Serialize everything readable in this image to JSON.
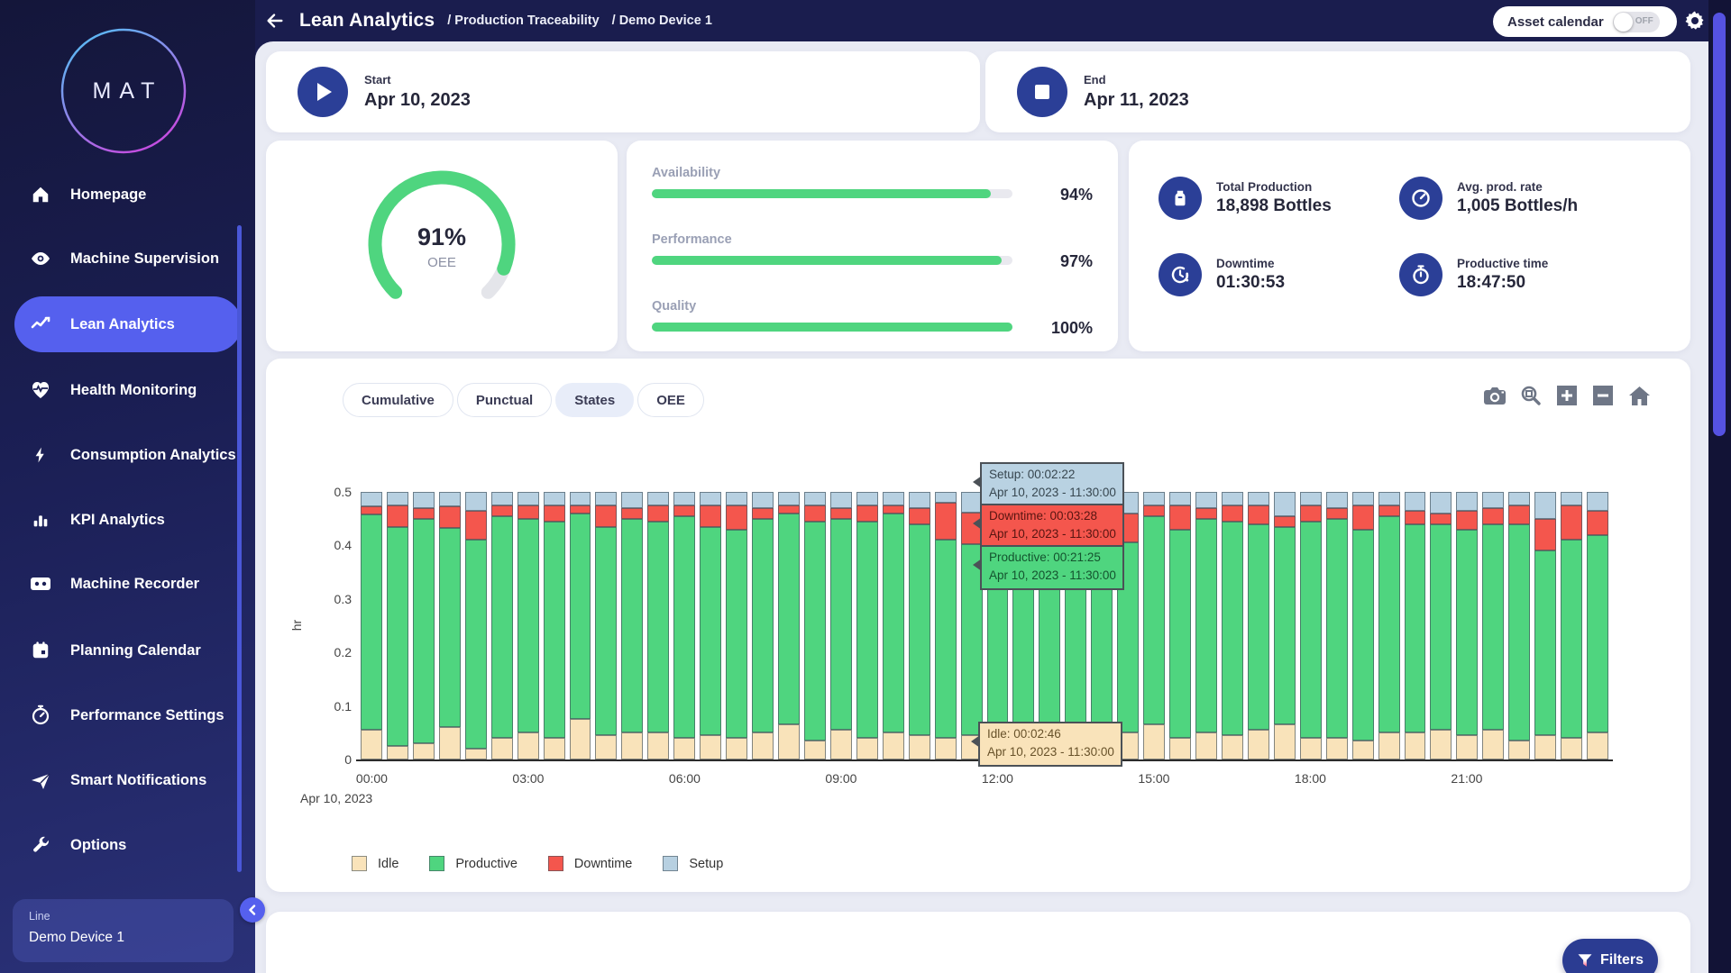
{
  "header": {
    "title": "Lean Analytics",
    "breadcrumb1": "/ Production Traceability",
    "breadcrumb2": "/ Demo Device 1",
    "asset_calendar_label": "Asset calendar",
    "asset_calendar_state": "OFF"
  },
  "sidebar": {
    "logo": "MAT",
    "items": [
      {
        "label": "Homepage",
        "icon": "home"
      },
      {
        "label": "Machine Supervision",
        "icon": "eye"
      },
      {
        "label": "Lean Analytics",
        "icon": "trend"
      },
      {
        "label": "Health Monitoring",
        "icon": "heart-pulse"
      },
      {
        "label": "Consumption Analytics",
        "icon": "bolt"
      },
      {
        "label": "KPI Analytics",
        "icon": "bar-chart"
      },
      {
        "label": "Machine Recorder",
        "icon": "cassette"
      },
      {
        "label": "Planning Calendar",
        "icon": "calendar"
      },
      {
        "label": "Performance Settings",
        "icon": "stopwatch-gauge"
      },
      {
        "label": "Smart Notifications",
        "icon": "send"
      },
      {
        "label": "Options",
        "icon": "wrench"
      }
    ],
    "line_label": "Line",
    "line_value": "Demo Device 1"
  },
  "period": {
    "start_label": "Start",
    "start_date": "Apr 10, 2023",
    "end_label": "End",
    "end_date": "Apr 11, 2023"
  },
  "oee": {
    "value": "91%",
    "label": "OEE",
    "percent": 91
  },
  "metrics": [
    {
      "label": "Availability",
      "value": 94,
      "display": "94%"
    },
    {
      "label": "Performance",
      "value": 97,
      "display": "97%"
    },
    {
      "label": "Quality",
      "value": 100,
      "display": "100%"
    }
  ],
  "stats": [
    {
      "label": "Total Production",
      "value": "18,898 Bottles",
      "icon": "bottle"
    },
    {
      "label": "Avg. prod. rate",
      "value": "1,005 Bottles/h",
      "icon": "gauge"
    },
    {
      "label": "Downtime",
      "value": "01:30:53",
      "icon": "clock-alert"
    },
    {
      "label": "Productive time",
      "value": "18:47:50",
      "icon": "stopwatch"
    }
  ],
  "chart_tabs": [
    {
      "label": "Cumulative",
      "active": false
    },
    {
      "label": "Punctual",
      "active": false
    },
    {
      "label": "States",
      "active": true
    },
    {
      "label": "OEE",
      "active": false
    }
  ],
  "chart_data": {
    "type": "bar",
    "stacked": true,
    "bar_interval_minutes": 30,
    "ylabel": "hr",
    "ylim": [
      0,
      0.5
    ],
    "yticks": [
      0,
      0.1,
      0.2,
      0.3,
      0.4,
      0.5
    ],
    "xticks": [
      {
        "label": "00:00",
        "index": 0
      },
      {
        "label": "03:00",
        "index": 6
      },
      {
        "label": "06:00",
        "index": 12
      },
      {
        "label": "09:00",
        "index": 18
      },
      {
        "label": "12:00",
        "index": 24
      },
      {
        "label": "15:00",
        "index": 30
      },
      {
        "label": "18:00",
        "index": 36
      },
      {
        "label": "21:00",
        "index": 42
      }
    ],
    "x_date_label": "Apr 10, 2023",
    "legend_position": "bottom",
    "series": [
      {
        "name": "Idle",
        "color": "#f9e3ba",
        "values": [
          0.055,
          0.025,
          0.03,
          0.06,
          0.02,
          0.04,
          0.05,
          0.04,
          0.075,
          0.045,
          0.05,
          0.05,
          0.04,
          0.045,
          0.04,
          0.05,
          0.065,
          0.035,
          0.055,
          0.04,
          0.05,
          0.045,
          0.04,
          0.046,
          0.05,
          0.045,
          0.04,
          0.045,
          0.05,
          0.05,
          0.065,
          0.04,
          0.05,
          0.045,
          0.055,
          0.065,
          0.04,
          0.04,
          0.035,
          0.05,
          0.05,
          0.055,
          0.045,
          0.055,
          0.035,
          0.045,
          0.04,
          0.05
        ]
      },
      {
        "name": "Productive",
        "color": "#4fd57f",
        "values": [
          0.403,
          0.41,
          0.42,
          0.373,
          0.39,
          0.415,
          0.4,
          0.405,
          0.385,
          0.39,
          0.4,
          0.395,
          0.415,
          0.39,
          0.39,
          0.4,
          0.395,
          0.41,
          0.395,
          0.405,
          0.41,
          0.395,
          0.37,
          0.357,
          0.405,
          0.405,
          0.41,
          0.4,
          0.405,
          0.355,
          0.39,
          0.39,
          0.4,
          0.4,
          0.385,
          0.37,
          0.405,
          0.41,
          0.395,
          0.405,
          0.39,
          0.385,
          0.385,
          0.385,
          0.405,
          0.345,
          0.37,
          0.37
        ]
      },
      {
        "name": "Downtime",
        "color": "#f4564d",
        "values": [
          0.015,
          0.04,
          0.02,
          0.04,
          0.055,
          0.02,
          0.025,
          0.03,
          0.015,
          0.04,
          0.02,
          0.03,
          0.02,
          0.04,
          0.045,
          0.02,
          0.015,
          0.03,
          0.02,
          0.03,
          0.015,
          0.03,
          0.07,
          0.058,
          0.02,
          0.025,
          0.02,
          0.03,
          0.02,
          0.055,
          0.02,
          0.045,
          0.02,
          0.03,
          0.035,
          0.02,
          0.03,
          0.02,
          0.045,
          0.02,
          0.025,
          0.02,
          0.035,
          0.03,
          0.035,
          0.06,
          0.065,
          0.045
        ]
      },
      {
        "name": "Setup",
        "color": "#b7d0e1",
        "values": [
          0.027,
          0.025,
          0.03,
          0.027,
          0.035,
          0.025,
          0.025,
          0.025,
          0.025,
          0.025,
          0.03,
          0.025,
          0.025,
          0.025,
          0.025,
          0.03,
          0.025,
          0.025,
          0.03,
          0.025,
          0.025,
          0.03,
          0.02,
          0.039,
          0.025,
          0.025,
          0.03,
          0.025,
          0.025,
          0.04,
          0.025,
          0.025,
          0.03,
          0.025,
          0.025,
          0.045,
          0.025,
          0.03,
          0.025,
          0.025,
          0.035,
          0.04,
          0.035,
          0.03,
          0.025,
          0.05,
          0.025,
          0.035
        ]
      }
    ]
  },
  "tooltips": [
    {
      "type": "Setup",
      "line1": "Setup: 00:02:22",
      "line2": "Apr 10, 2023 - 11:30:00"
    },
    {
      "type": "Downtime",
      "line1": "Downtime: 00:03:28",
      "line2": "Apr 10, 2023 - 11:30:00"
    },
    {
      "type": "Productive",
      "line1": "Productive: 00:21:25",
      "line2": "Apr 10, 2023 - 11:30:00"
    },
    {
      "type": "Idle",
      "line1": "Idle: 00:02:46",
      "line2": "Apr 10, 2023 - 11:30:00"
    }
  ],
  "filters_label": "Filters"
}
